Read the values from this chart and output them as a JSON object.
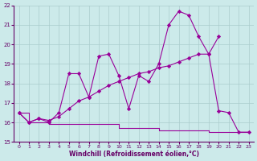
{
  "xlabel": "Windchill (Refroidissement éolien,°C)",
  "bg_color": "#cceaea",
  "line_color": "#990099",
  "grid_color": "#aacccc",
  "xlim": [
    -0.5,
    23.5
  ],
  "ylim": [
    15,
    22
  ],
  "xticks": [
    0,
    1,
    2,
    3,
    4,
    5,
    6,
    7,
    8,
    9,
    10,
    11,
    12,
    13,
    14,
    15,
    16,
    17,
    18,
    19,
    20,
    21,
    22,
    23
  ],
  "yticks": [
    15,
    16,
    17,
    18,
    19,
    20,
    21,
    22
  ],
  "line1_x": [
    0,
    1,
    2,
    3,
    4,
    5,
    6,
    7,
    8,
    9,
    10,
    11,
    12,
    13,
    14,
    15,
    16,
    17,
    18,
    19,
    20,
    21,
    22,
    23
  ],
  "line1_y": [
    16.5,
    16.0,
    16.2,
    16.0,
    16.5,
    18.5,
    18.5,
    17.3,
    19.4,
    19.5,
    18.4,
    16.7,
    18.4,
    18.1,
    19.0,
    21.0,
    21.7,
    21.5,
    20.4,
    19.5,
    16.6,
    16.5,
    15.5,
    15.5
  ],
  "line2_x": [
    0,
    1,
    2,
    3,
    4,
    5,
    6,
    7,
    8,
    9,
    10,
    11,
    12,
    13,
    14,
    15,
    16,
    17,
    18,
    19,
    20
  ],
  "line2_y": [
    16.5,
    16.0,
    16.2,
    16.1,
    16.3,
    16.7,
    17.1,
    17.3,
    17.6,
    17.9,
    18.1,
    18.3,
    18.5,
    18.6,
    18.8,
    18.9,
    19.1,
    19.3,
    19.5,
    19.5,
    20.4
  ],
  "line3_x": [
    0,
    1,
    2,
    3,
    3,
    4,
    10,
    10,
    14,
    14,
    19,
    19,
    23
  ],
  "line3_y": [
    16.5,
    16.0,
    16.0,
    16.0,
    15.9,
    15.9,
    15.9,
    15.7,
    15.7,
    15.6,
    15.6,
    15.5,
    15.5
  ]
}
